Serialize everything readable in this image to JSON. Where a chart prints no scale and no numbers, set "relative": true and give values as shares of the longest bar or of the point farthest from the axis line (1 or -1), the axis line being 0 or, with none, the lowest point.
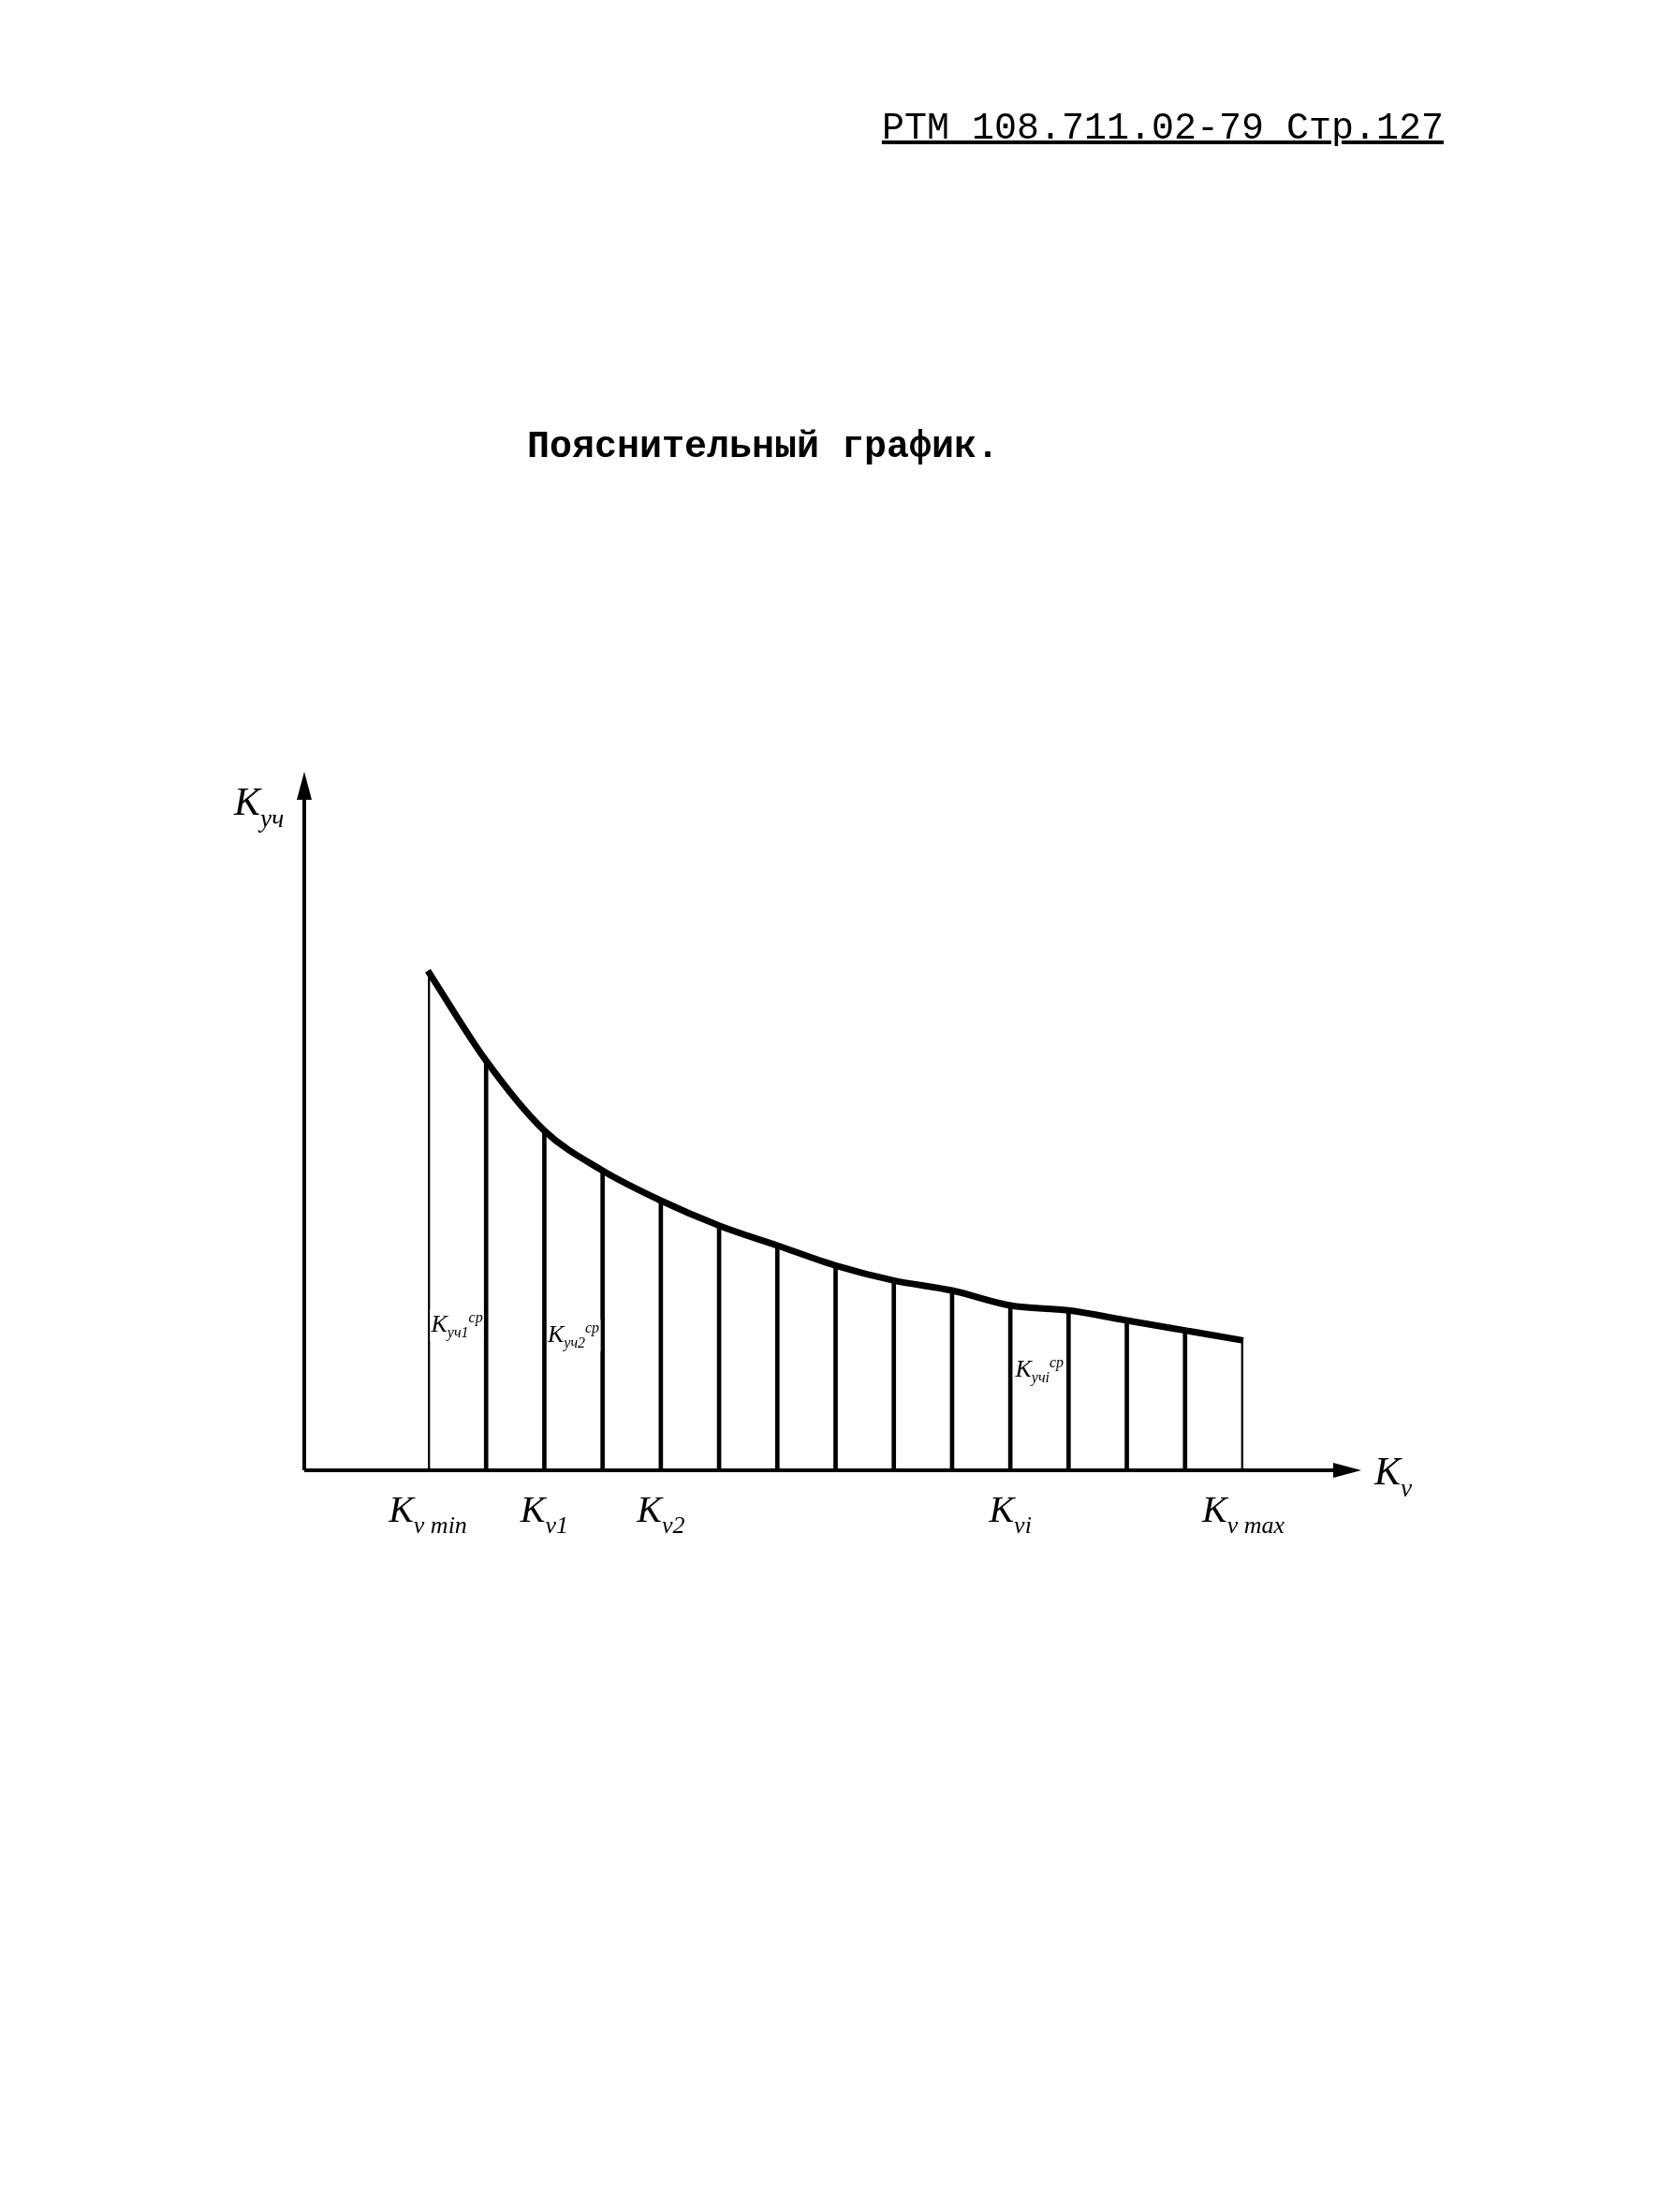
{
  "chart_data": {
    "type": "bar",
    "title": "Пояснительный график.",
    "xlabel": "K$_{v}$",
    "ylabel": "K$_{уч}$",
    "annotations": [
      "РТМ 108.711.02-79 Стр.127",
      {
        "text": "K$_{уч1}$$^{ср}$",
        "x": "K$_{v min}$",
        "y": 0.29
      },
      {
        "text": "K$_{уч2}$$^{ср}$",
        "x": "K$_{v1}$",
        "y": 0.27
      },
      {
        "text": "K$_{учi}$$^{ср}$",
        "x": "K$_{vi}$",
        "y": 0.2
      }
    ],
    "categories": [
      "K$_{v min}$",
      null,
      "K$_{v1}$",
      null,
      "K$_{v2}$",
      null,
      null,
      null,
      null,
      null,
      "K$_{vi}$",
      null,
      null,
      null,
      "K$_{v max}$"
    ],
    "relative": true,
    "grid": false,
    "legend": false,
    "marker": "none",
    "series": [
      {
        "color": "#000000",
        "values": [
          1,
          0.82,
          0.68,
          0.6,
          0.54,
          0.49,
          0.45,
          0.41,
          0.38,
          0.36,
          0.33,
          0.32,
          0.3,
          0.28,
          0.26
        ]
      },
      {
        "type": "line",
        "color": "#000000",
        "values": [
          1,
          0.82,
          0.68,
          0.6,
          0.54,
          0.49,
          0.45,
          0.41,
          0.38,
          0.36,
          0.33,
          0.32,
          0.3,
          0.28,
          0.26
        ]
      }
    ]
  }
}
